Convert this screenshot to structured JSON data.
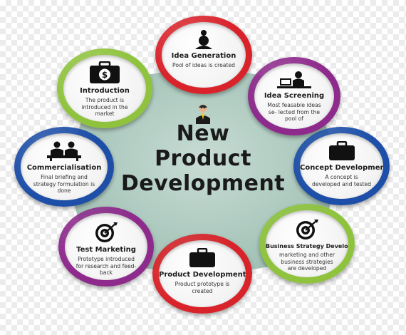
{
  "diagram": {
    "title_lines": [
      "New",
      "Product",
      "Development"
    ],
    "stages": [
      {
        "key": "idea-generation",
        "label": "Idea Generation",
        "desc": "Pool of ideas is created",
        "icon": "lightbulb-head-icon",
        "color": "#d9232a"
      },
      {
        "key": "idea-screening",
        "label": "Idea Screening",
        "desc": "Most feasable ideas se- lected from the pool of",
        "icon": "person-at-laptop-icon",
        "color": "#8e2a8c"
      },
      {
        "key": "concept-development",
        "label": "Concept Development",
        "desc": "A concept is developed and tested",
        "icon": "briefcase-icon",
        "color": "#1e4fa8"
      },
      {
        "key": "business-strategy-development",
        "label": "Business Strategy Development",
        "desc": "marketing and other business strategies are developed",
        "icon": "target-icon",
        "color": "#8fc33d"
      },
      {
        "key": "product-development",
        "label": "Product Development",
        "desc": "Product prototype is created",
        "icon": "briefcase-icon",
        "color": "#d9232a"
      },
      {
        "key": "test-marketing",
        "label": "Test Marketing",
        "desc": "Prototype introduced for research and feed- back",
        "icon": "target-icon",
        "color": "#8e2a8c"
      },
      {
        "key": "commercialisation",
        "label": "Commercialisation",
        "desc": "Final briefing and strategy formulation is done",
        "icon": "meeting-people-icon",
        "color": "#1e4fa8"
      },
      {
        "key": "introduction",
        "label": "Introduction",
        "desc": "The product is introduced in the market",
        "icon": "money-case-icon",
        "color": "#8fc33d"
      }
    ]
  }
}
